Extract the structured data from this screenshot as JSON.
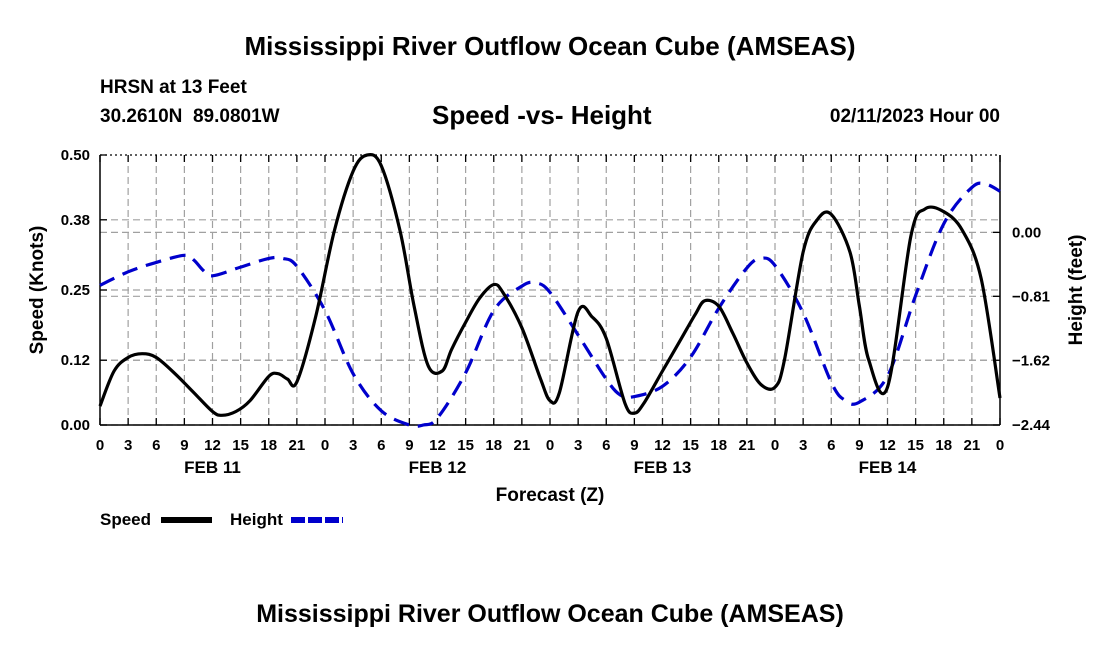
{
  "header": {
    "title": "Mississippi River Outflow Ocean Cube (AMSEAS)",
    "station": "HRSN at 13 Feet",
    "coords": "30.2610N  89.0801W",
    "subtitle": "Speed -vs- Height",
    "datetime": "02/11/2023 Hour 00"
  },
  "footer": {
    "title": "Mississippi River Outflow Ocean Cube (AMSEAS)"
  },
  "colors": {
    "speed": "#000000",
    "height": "#0000cc",
    "grid": "#a0a0a0"
  },
  "chart_data": {
    "type": "line",
    "title": "Speed -vs- Height",
    "xlabel": "Forecast (Z)",
    "ylabel": "Speed (Knots)",
    "y2label": "Height (feet)",
    "xlim": [
      0,
      96
    ],
    "ylim": [
      0,
      0.5
    ],
    "y2lim": [
      -2.44,
      0.98
    ],
    "x_ticks": [
      0,
      3,
      6,
      9,
      12,
      15,
      18,
      21,
      24,
      27,
      30,
      33,
      36,
      39,
      42,
      45,
      48,
      51,
      54,
      57,
      60,
      63,
      66,
      69,
      72,
      75,
      78,
      81,
      84,
      87,
      90,
      93,
      96
    ],
    "x_tick_labels": [
      "0",
      "3",
      "6",
      "9",
      "12",
      "15",
      "18",
      "21",
      "0",
      "3",
      "6",
      "9",
      "12",
      "15",
      "18",
      "21",
      "0",
      "3",
      "6",
      "9",
      "12",
      "15",
      "18",
      "21",
      "0",
      "3",
      "6",
      "9",
      "12",
      "15",
      "18",
      "21",
      "0"
    ],
    "day_labels": [
      {
        "x": 12,
        "label": "FEB 11"
      },
      {
        "x": 36,
        "label": "FEB 12"
      },
      {
        "x": 60,
        "label": "FEB 13"
      },
      {
        "x": 84,
        "label": "FEB 14"
      }
    ],
    "y_ticks": [
      0.0,
      0.12,
      0.25,
      0.38,
      0.5
    ],
    "y_tick_labels": [
      "0.00",
      "0.12",
      "0.25",
      "0.38",
      "0.50"
    ],
    "y2_ticks": [
      0.0,
      -0.81,
      -1.62,
      -2.44
    ],
    "y2_tick_labels": [
      "0.00",
      "−0.81",
      "−1.62",
      "−2.44"
    ],
    "legend": [
      {
        "name": "Speed",
        "style": "solid"
      },
      {
        "name": "Height",
        "style": "dashed"
      }
    ],
    "series": [
      {
        "name": "Speed",
        "axis": "left",
        "x": [
          0,
          1.5,
          3,
          4.5,
          6,
          8,
          10,
          12,
          13,
          14.5,
          16,
          18,
          19,
          20,
          21,
          23,
          25,
          27,
          28.5,
          30,
          32,
          33.5,
          35,
          36.5,
          37.5,
          39,
          40.5,
          42,
          43,
          45,
          47,
          48,
          49,
          51,
          52.5,
          54,
          56,
          57,
          58,
          60,
          62,
          63.5,
          64.5,
          66,
          67.5,
          69,
          70.5,
          72,
          73,
          75,
          76.5,
          78,
          80,
          81,
          82,
          84,
          86.5,
          88,
          90,
          92,
          94,
          96
        ],
        "values": [
          0.035,
          0.1,
          0.125,
          0.132,
          0.125,
          0.095,
          0.06,
          0.025,
          0.018,
          0.025,
          0.045,
          0.09,
          0.095,
          0.085,
          0.08,
          0.2,
          0.36,
          0.47,
          0.5,
          0.48,
          0.36,
          0.22,
          0.11,
          0.1,
          0.14,
          0.19,
          0.235,
          0.26,
          0.245,
          0.18,
          0.085,
          0.045,
          0.06,
          0.21,
          0.2,
          0.16,
          0.04,
          0.022,
          0.04,
          0.1,
          0.16,
          0.205,
          0.23,
          0.22,
          0.17,
          0.115,
          0.075,
          0.07,
          0.12,
          0.32,
          0.38,
          0.39,
          0.32,
          0.22,
          0.12,
          0.07,
          0.35,
          0.4,
          0.395,
          0.36,
          0.27,
          0.05
        ]
      },
      {
        "name": "Height",
        "axis": "right",
        "x": [
          0,
          3,
          6,
          9,
          10,
          11,
          12,
          15,
          18,
          19.5,
          21,
          24,
          27,
          30,
          33,
          34.5,
          36,
          39,
          42,
          45,
          46.5,
          48,
          51,
          54,
          55.5,
          57,
          60,
          63,
          66,
          69,
          70.5,
          72,
          75,
          78,
          79.5,
          81,
          84,
          87,
          90,
          93,
          94.5,
          96
        ],
        "values": [
          -0.67,
          -0.5,
          -0.38,
          -0.29,
          -0.35,
          -0.48,
          -0.55,
          -0.44,
          -0.33,
          -0.33,
          -0.43,
          -0.99,
          -1.79,
          -2.26,
          -2.44,
          -2.44,
          -2.35,
          -1.78,
          -0.99,
          -0.68,
          -0.64,
          -0.76,
          -1.3,
          -1.86,
          -2.06,
          -2.08,
          -1.95,
          -1.58,
          -0.96,
          -0.45,
          -0.33,
          -0.42,
          -1.02,
          -1.9,
          -2.13,
          -2.15,
          -1.82,
          -0.8,
          0.11,
          0.57,
          0.61,
          0.52
        ]
      }
    ]
  }
}
